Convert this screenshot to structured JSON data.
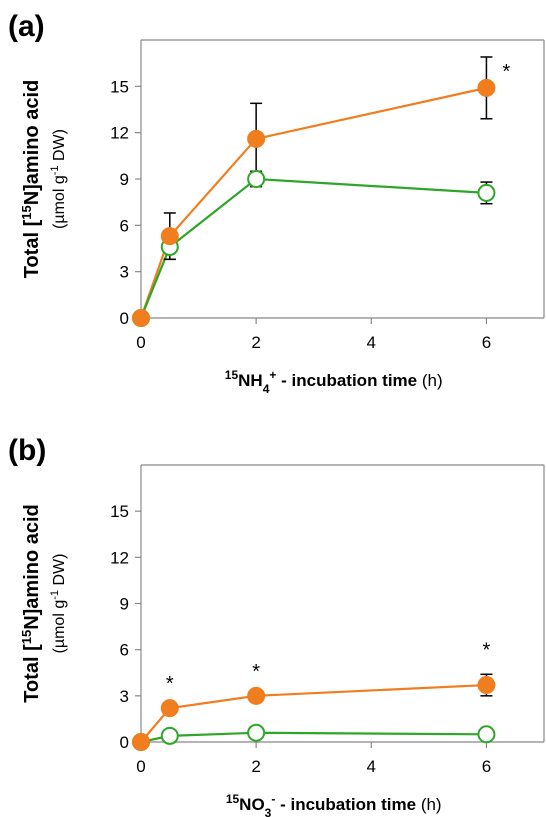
{
  "chart_data": [
    {
      "type": "line",
      "panel_label": "(a)",
      "ylabel_main_pre": "Total [",
      "ylabel_main_sup": "15",
      "ylabel_main_post": "N]amino acid",
      "ylabel_unit_pre": "(µmol g",
      "ylabel_unit_sup": "-1",
      "ylabel_unit_post": " DW)",
      "xlabel_sup": "15",
      "xlabel_ion": "NH",
      "xlabel_sub": "4",
      "xlabel_charge": "+",
      "xlabel_bold_rest": " -  incubation time",
      "xlabel_unit": " (h)",
      "xlim": [
        0,
        7
      ],
      "ylim": [
        0,
        18
      ],
      "xticks": [
        "0",
        "2",
        "4",
        "6"
      ],
      "yticks": [
        "0",
        "3",
        "6",
        "9",
        "12",
        "15"
      ],
      "series": [
        {
          "color": "#f07d1e",
          "marker": "filled-circle",
          "x": [
            0,
            0.5,
            2,
            6
          ],
          "y": [
            0,
            5.3,
            11.6,
            14.9
          ],
          "err": [
            0,
            1.5,
            2.3,
            2.0
          ]
        },
        {
          "color": "#2ea628",
          "marker": "open-circle",
          "x": [
            0,
            0.5,
            2,
            6
          ],
          "y": [
            0,
            4.6,
            9.0,
            8.1
          ],
          "err": [
            0,
            0.8,
            0.5,
            0.7
          ]
        }
      ],
      "significance": [
        {
          "x": 6,
          "text": "*"
        }
      ]
    },
    {
      "type": "line",
      "panel_label": "(b)",
      "ylabel_main_pre": "Total [",
      "ylabel_main_sup": "15",
      "ylabel_main_post": "N]amino acid",
      "ylabel_unit_pre": "(µmol g",
      "ylabel_unit_sup": "-1",
      "ylabel_unit_post": " DW)",
      "xlabel_sup": "15",
      "xlabel_ion": "NO",
      "xlabel_sub": "3",
      "xlabel_charge": "-",
      "xlabel_bold_rest": " -  incubation time",
      "xlabel_unit": " (h)",
      "xlim": [
        0,
        7
      ],
      "ylim": [
        0,
        18
      ],
      "xticks": [
        "0",
        "2",
        "4",
        "6"
      ],
      "yticks": [
        "0",
        "3",
        "6",
        "9",
        "12",
        "15"
      ],
      "series": [
        {
          "color": "#f07d1e",
          "marker": "filled-circle",
          "x": [
            0,
            0.5,
            2,
            6
          ],
          "y": [
            0,
            2.2,
            3.0,
            3.7
          ],
          "err": [
            0,
            0,
            0,
            0.7
          ]
        },
        {
          "color": "#2ea628",
          "marker": "open-circle",
          "x": [
            0,
            0.5,
            2,
            6
          ],
          "y": [
            0,
            0.4,
            0.6,
            0.5
          ],
          "err": [
            0,
            0,
            0,
            0
          ]
        }
      ],
      "significance": [
        {
          "x": 0.5,
          "text": "*"
        },
        {
          "x": 2,
          "text": "*"
        },
        {
          "x": 6,
          "text": "*"
        }
      ]
    }
  ]
}
